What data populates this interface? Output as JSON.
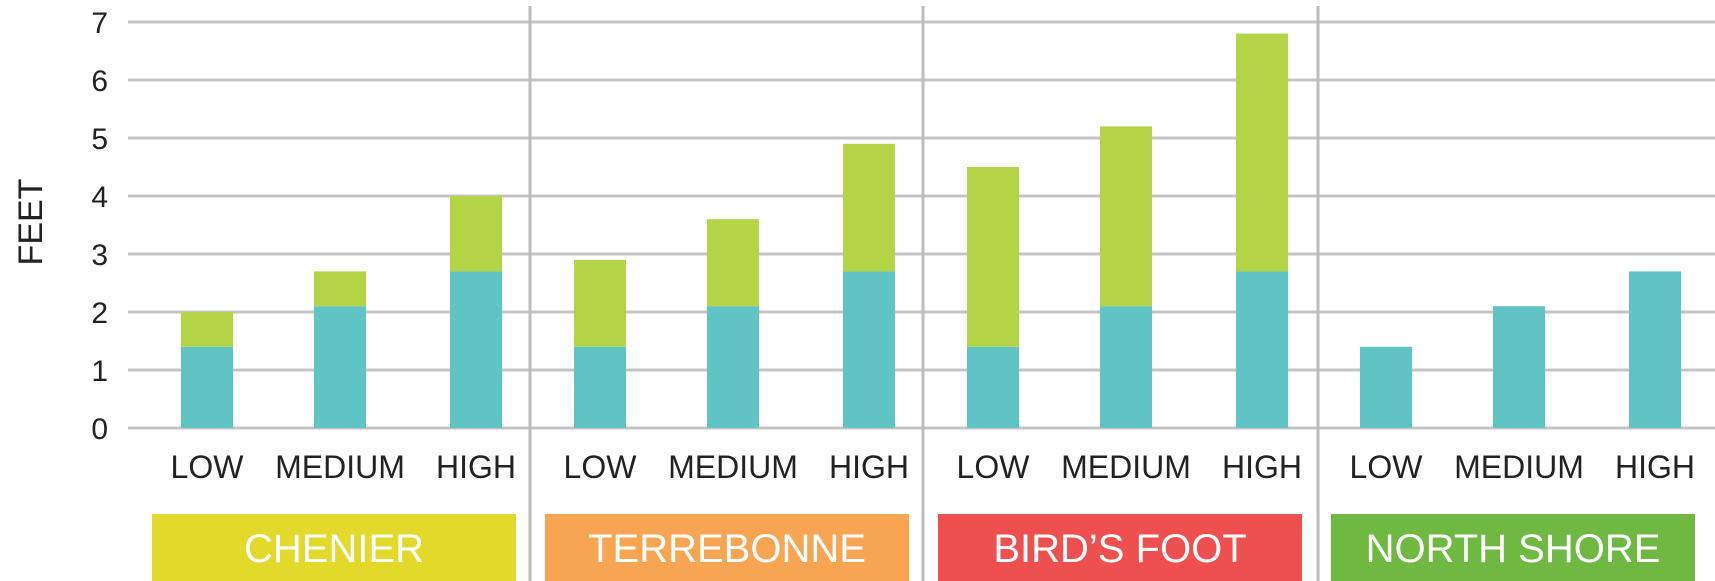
{
  "chart_data": {
    "type": "bar",
    "stacked": true,
    "ylabel": "FEET",
    "ylim": [
      0,
      7
    ],
    "yticks": [
      0,
      1,
      2,
      3,
      4,
      5,
      6,
      7
    ],
    "grid": true,
    "categories": [
      "LOW",
      "MEDIUM",
      "HIGH"
    ],
    "groups": [
      {
        "label": "CHENIER",
        "color": "#e2d92a",
        "base": [
          1.4,
          2.1,
          2.7
        ],
        "top": [
          0.6,
          0.6,
          1.3
        ]
      },
      {
        "label": "TERREBONNE",
        "color": "#f7a553",
        "base": [
          1.4,
          2.1,
          2.7
        ],
        "top": [
          1.5,
          1.5,
          2.2
        ]
      },
      {
        "label": "BIRD’S FOOT",
        "color": "#ee5050",
        "base": [
          1.4,
          2.1,
          2.7
        ],
        "top": [
          3.1,
          3.1,
          4.1
        ]
      },
      {
        "label": "NORTH SHORE",
        "color": "#6fb943",
        "base": [
          1.4,
          2.1,
          2.7
        ],
        "top": [
          0,
          0,
          0
        ]
      }
    ],
    "series_colors": {
      "base": "#5fc4c3",
      "top": "#b3d446"
    },
    "colors": {
      "grid": "#c4c4c4",
      "divider": "#bdbdbd"
    }
  }
}
